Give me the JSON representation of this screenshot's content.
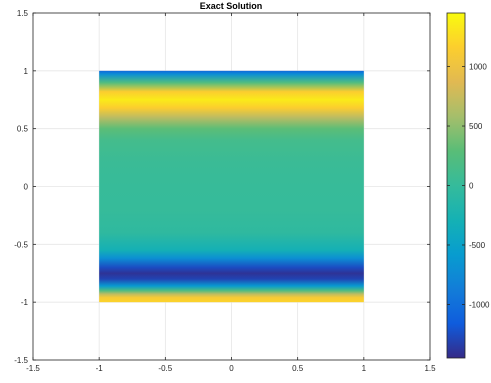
{
  "chart_data": {
    "type": "heatmap",
    "title": "Exact Solution",
    "xlim": [
      -1.5,
      1.5
    ],
    "ylim": [
      -1.5,
      1.5
    ],
    "x_ticks": [
      -1.5,
      -1,
      -0.5,
      0,
      0.5,
      1,
      1.5
    ],
    "y_ticks": [
      -1.5,
      -1,
      -0.5,
      0,
      0.5,
      1,
      1.5
    ],
    "x_tick_labels": [
      "-1.5",
      "-1",
      "-0.5",
      "0",
      "0.5",
      "1",
      "1.5"
    ],
    "y_tick_labels": [
      "-1.5",
      "-1",
      "-0.5",
      "0",
      "0.5",
      "1",
      "1.5"
    ],
    "grid": true,
    "colormap": "parula",
    "colorbar": {
      "position": "right",
      "clim": [
        -1450,
        1450
      ],
      "ticks": [
        1000,
        500,
        0,
        -500,
        -1000
      ],
      "tick_labels": [
        "1000",
        "500",
        "0",
        "-500",
        "-1000"
      ]
    },
    "data_domain": {
      "x": [
        -1,
        1
      ],
      "y": [
        -1,
        1
      ]
    },
    "profile_along_y": {
      "note": "value is constant along x; varies with y",
      "y": [
        1.0,
        0.97,
        0.9,
        0.82,
        0.75,
        0.68,
        0.6,
        0.5,
        0.4,
        0.2,
        0.0,
        -0.2,
        -0.4,
        -0.55,
        -0.62,
        -0.7,
        -0.75,
        -0.8,
        -0.86,
        -0.9,
        -0.93,
        -0.96,
        -1.0
      ],
      "values": [
        -1050,
        -700,
        200,
        1150,
        1350,
        1150,
        700,
        300,
        120,
        40,
        20,
        10,
        -50,
        -300,
        -700,
        -1250,
        -1400,
        -1300,
        -600,
        200,
        700,
        1100,
        1200
      ]
    }
  }
}
